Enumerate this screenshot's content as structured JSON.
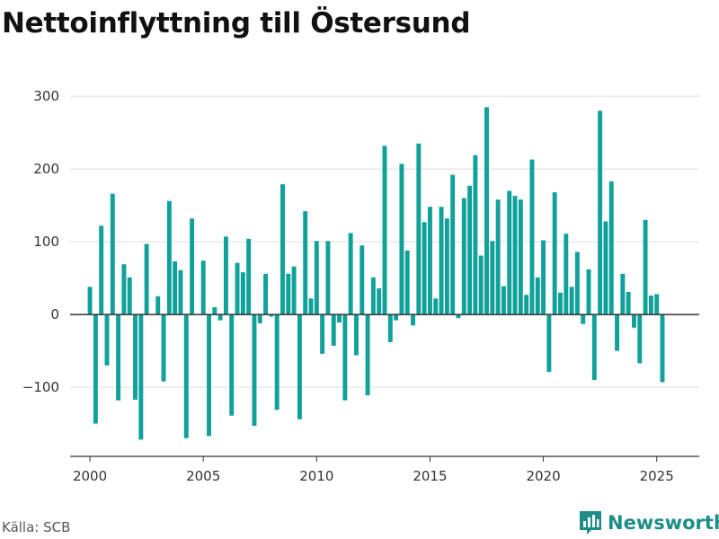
{
  "title": "Nettoinflyttning till Östersund",
  "source": "Källa: SCB",
  "brand": {
    "name": "Newsworthy",
    "icon": "newsworthy-logo-icon"
  },
  "colors": {
    "bar": "#0fa19a",
    "grid": "#dddddd",
    "zero_line": "#333333",
    "axis": "#333333",
    "brand": "#1e8d88"
  },
  "chart_data": {
    "type": "bar",
    "title": "Nettoinflyttning till Östersund",
    "xlabel": "",
    "ylabel": "",
    "x_ticks": [
      2000,
      2005,
      2010,
      2015,
      2020,
      2025
    ],
    "y_ticks": [
      -100,
      0,
      100,
      200,
      300
    ],
    "y_tick_labels": [
      "−100",
      "0",
      "100",
      "200",
      "300"
    ],
    "xlim": [
      1999.125,
      2026.875
    ],
    "ylim": [
      -195,
      315
    ],
    "grid": true,
    "legend": "none",
    "period": "quarterly",
    "x": [
      2000.0,
      2000.25,
      2000.5,
      2000.75,
      2001.0,
      2001.25,
      2001.5,
      2001.75,
      2002.0,
      2002.25,
      2002.5,
      2002.75,
      2003.0,
      2003.25,
      2003.5,
      2003.75,
      2004.0,
      2004.25,
      2004.5,
      2004.75,
      2005.0,
      2005.25,
      2005.5,
      2005.75,
      2006.0,
      2006.25,
      2006.5,
      2006.75,
      2007.0,
      2007.25,
      2007.5,
      2007.75,
      2008.0,
      2008.25,
      2008.5,
      2008.75,
      2009.0,
      2009.25,
      2009.5,
      2009.75,
      2010.0,
      2010.25,
      2010.5,
      2010.75,
      2011.0,
      2011.25,
      2011.5,
      2011.75,
      2012.0,
      2012.25,
      2012.5,
      2012.75,
      2013.0,
      2013.25,
      2013.5,
      2013.75,
      2014.0,
      2014.25,
      2014.5,
      2014.75,
      2015.0,
      2015.25,
      2015.5,
      2015.75,
      2016.0,
      2016.25,
      2016.5,
      2016.75,
      2017.0,
      2017.25,
      2017.5,
      2017.75,
      2018.0,
      2018.25,
      2018.5,
      2018.75,
      2019.0,
      2019.25,
      2019.5,
      2019.75,
      2020.0,
      2020.25,
      2020.5,
      2020.75,
      2021.0,
      2021.25,
      2021.5,
      2021.75,
      2022.0,
      2022.25,
      2022.5,
      2022.75,
      2023.0,
      2023.25,
      2023.5,
      2023.75,
      2024.0,
      2024.25,
      2024.5,
      2024.75,
      2025.0,
      2025.25
    ],
    "values": [
      38,
      -150,
      122,
      -70,
      166,
      -118,
      69,
      51,
      -117,
      -172,
      97,
      0,
      25,
      -92,
      156,
      73,
      61,
      -170,
      132,
      0,
      74,
      -167,
      10,
      -8,
      107,
      -139,
      71,
      58,
      104,
      -153,
      -12,
      56,
      -3,
      -131,
      179,
      56,
      66,
      -144,
      142,
      22,
      101,
      -54,
      101,
      -43,
      -11,
      -118,
      112,
      -56,
      95,
      -111,
      51,
      36,
      232,
      -38,
      -8,
      207,
      88,
      -15,
      235,
      127,
      148,
      22,
      148,
      132,
      192,
      -5,
      160,
      177,
      219,
      81,
      285,
      101,
      158,
      39,
      170,
      163,
      158,
      27,
      213,
      51,
      102,
      -79,
      168,
      30,
      111,
      38,
      86,
      -13,
      62,
      -90,
      280,
      128,
      183,
      -50,
      56,
      31,
      -18,
      -67,
      130,
      26,
      28,
      -93
    ]
  }
}
